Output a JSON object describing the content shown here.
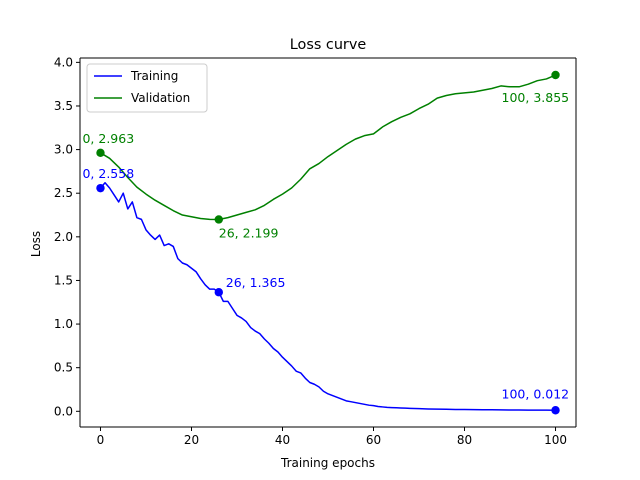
{
  "chart_data": {
    "type": "line",
    "title": "Loss curve",
    "xlabel": "Training epochs",
    "ylabel": "Loss",
    "xlim": [
      -4.5,
      104.5
    ],
    "ylim": [
      -0.18,
      4.05
    ],
    "xticks": [
      0,
      20,
      40,
      60,
      80,
      100
    ],
    "yticks": [
      0.0,
      0.5,
      1.0,
      1.5,
      2.0,
      2.5,
      3.0,
      3.5,
      4.0
    ],
    "xtick_labels": [
      "0",
      "20",
      "40",
      "60",
      "80",
      "100"
    ],
    "ytick_labels": [
      "0.0",
      "0.5",
      "1.0",
      "1.5",
      "2.0",
      "2.5",
      "3.0",
      "3.5",
      "4.0"
    ],
    "grid": false,
    "legend": {
      "position": "upper-left"
    },
    "series": [
      {
        "name": "Training",
        "color": "#0000ff",
        "x": [
          0,
          1,
          2,
          3,
          4,
          5,
          6,
          7,
          8,
          9,
          10,
          11,
          12,
          13,
          14,
          15,
          16,
          17,
          18,
          19,
          20,
          21,
          22,
          23,
          24,
          25,
          26,
          27,
          28,
          29,
          30,
          31,
          32,
          33,
          34,
          35,
          36,
          37,
          38,
          39,
          40,
          41,
          42,
          43,
          44,
          45,
          46,
          47,
          48,
          49,
          50,
          51,
          52,
          53,
          54,
          55,
          56,
          57,
          58,
          59,
          60,
          61,
          62,
          63,
          64,
          65,
          66,
          67,
          68,
          69,
          70,
          72,
          74,
          76,
          78,
          80,
          82,
          84,
          86,
          88,
          90,
          92,
          94,
          96,
          98,
          100
        ],
        "y": [
          2.558,
          2.62,
          2.56,
          2.48,
          2.4,
          2.5,
          2.32,
          2.4,
          2.22,
          2.2,
          2.08,
          2.02,
          1.97,
          2.02,
          1.9,
          1.92,
          1.89,
          1.75,
          1.7,
          1.68,
          1.64,
          1.6,
          1.52,
          1.45,
          1.4,
          1.4,
          1.365,
          1.26,
          1.26,
          1.18,
          1.1,
          1.07,
          1.03,
          0.96,
          0.92,
          0.89,
          0.83,
          0.78,
          0.72,
          0.68,
          0.62,
          0.57,
          0.52,
          0.46,
          0.44,
          0.38,
          0.33,
          0.31,
          0.28,
          0.23,
          0.2,
          0.18,
          0.16,
          0.14,
          0.12,
          0.11,
          0.1,
          0.09,
          0.08,
          0.07,
          0.065,
          0.055,
          0.05,
          0.045,
          0.042,
          0.04,
          0.038,
          0.036,
          0.034,
          0.032,
          0.03,
          0.027,
          0.025,
          0.023,
          0.021,
          0.02,
          0.019,
          0.018,
          0.017,
          0.016,
          0.015,
          0.015,
          0.014,
          0.013,
          0.013,
          0.012
        ],
        "markers": [
          {
            "x": 0,
            "y": 2.558,
            "label": "0, 2.558"
          },
          {
            "x": 26,
            "y": 1.365,
            "label": "26, 1.365"
          },
          {
            "x": 100,
            "y": 0.012,
            "label": "100, 0.012"
          }
        ]
      },
      {
        "name": "Validation",
        "color": "#008000",
        "x": [
          0,
          2,
          4,
          6,
          8,
          10,
          12,
          14,
          16,
          18,
          20,
          22,
          24,
          26,
          28,
          30,
          32,
          34,
          36,
          38,
          40,
          42,
          44,
          46,
          48,
          50,
          52,
          54,
          56,
          58,
          60,
          62,
          64,
          66,
          68,
          70,
          72,
          74,
          76,
          78,
          80,
          82,
          84,
          86,
          88,
          90,
          92,
          94,
          96,
          98,
          100
        ],
        "y": [
          2.963,
          2.9,
          2.8,
          2.68,
          2.57,
          2.49,
          2.42,
          2.36,
          2.3,
          2.25,
          2.23,
          2.21,
          2.2,
          2.199,
          2.22,
          2.25,
          2.28,
          2.31,
          2.36,
          2.43,
          2.49,
          2.56,
          2.66,
          2.78,
          2.84,
          2.92,
          2.99,
          3.06,
          3.12,
          3.16,
          3.18,
          3.26,
          3.32,
          3.37,
          3.41,
          3.47,
          3.52,
          3.59,
          3.62,
          3.64,
          3.65,
          3.66,
          3.68,
          3.7,
          3.73,
          3.72,
          3.72,
          3.75,
          3.79,
          3.81,
          3.855
        ],
        "markers": [
          {
            "x": 0,
            "y": 2.963,
            "label": "0, 2.963"
          },
          {
            "x": 26,
            "y": 2.199,
            "label": "26, 2.199"
          },
          {
            "x": 100,
            "y": 3.855,
            "label": "100, 3.855"
          }
        ]
      }
    ]
  }
}
